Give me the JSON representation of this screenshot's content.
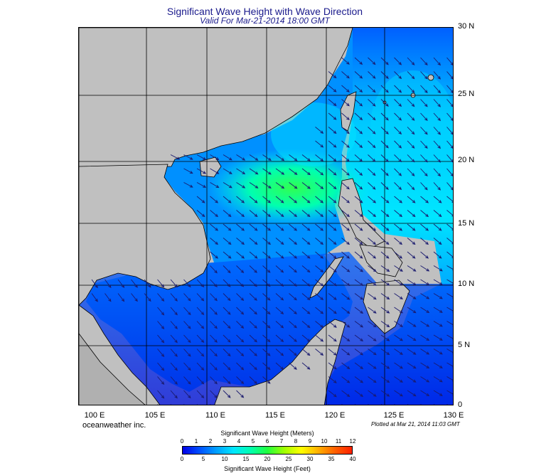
{
  "title": "Significant Wave Height with Wave Direction",
  "subtitle": "Valid For Mar-21-2014 18:00 GMT",
  "credit": "oceanweather inc.",
  "plotted": "Plotted at Mar 21, 2014 11:03 GMT",
  "lat_labels": [
    "30 N",
    "25 N",
    "20 N",
    "15 N",
    "10 N",
    "5 N",
    "0"
  ],
  "lon_labels": [
    "100 E",
    "105 E",
    "110 E",
    "115 E",
    "120 E",
    "125 E",
    "130 E"
  ],
  "legend": {
    "meters_title": "Significant Wave Height (Meters)",
    "feet_title": "Significant Wave Height (Feet)",
    "meters_ticks": [
      "0",
      "1",
      "2",
      "3",
      "4",
      "5",
      "6",
      "7",
      "8",
      "9",
      "10",
      "11",
      "12"
    ],
    "feet_ticks": [
      "0",
      "5",
      "10",
      "15",
      "20",
      "25",
      "30",
      "35",
      "40"
    ],
    "colors": [
      "#0000e6",
      "#0050ff",
      "#00a0ff",
      "#00e6ff",
      "#00ffb0",
      "#20ff40",
      "#a0ff00",
      "#ffff00",
      "#ffb000",
      "#ff6000",
      "#ff2000"
    ]
  },
  "colors": {
    "land": "#c0c0c0",
    "grid": "#000000",
    "arrow": "#1a1a6e",
    "title": "#1a1a8c"
  }
}
